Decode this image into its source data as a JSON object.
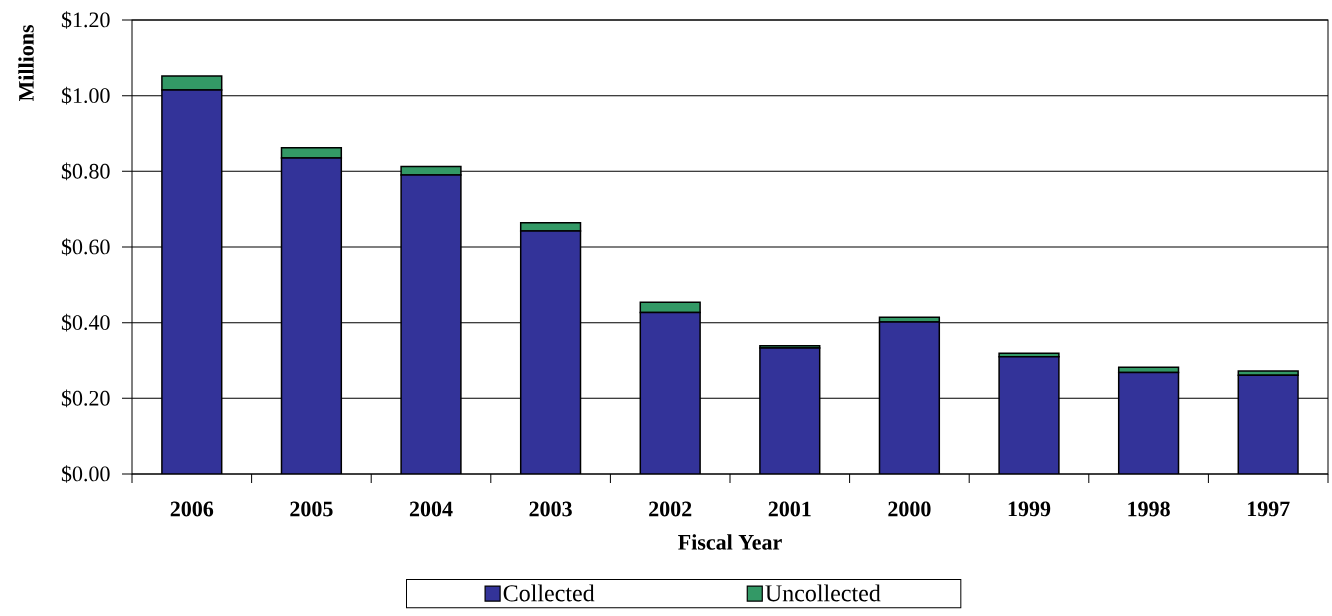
{
  "chart_data": {
    "type": "bar",
    "stacked": true,
    "xlabel": "Fiscal Year",
    "ylabel": "Millions",
    "categories": [
      "2006",
      "2005",
      "2004",
      "2003",
      "2002",
      "2001",
      "2000",
      "1999",
      "1998",
      "1997"
    ],
    "series": [
      {
        "name": "Collected",
        "color": "#333399",
        "values": [
          1.015,
          0.835,
          0.79,
          0.642,
          0.427,
          0.333,
          0.402,
          0.31,
          0.268,
          0.261
        ]
      },
      {
        "name": "Uncollected",
        "color": "#339966",
        "values": [
          0.037,
          0.027,
          0.023,
          0.022,
          0.027,
          0.006,
          0.012,
          0.009,
          0.014,
          0.011
        ]
      }
    ],
    "ylim": [
      0,
      1.2
    ],
    "yticks": [
      {
        "value": 0,
        "label": "$0.00"
      },
      {
        "value": 0.2,
        "label": "$0.20"
      },
      {
        "value": 0.4,
        "label": "$0.40"
      },
      {
        "value": 0.6,
        "label": "$0.60"
      },
      {
        "value": 0.8,
        "label": "$0.80"
      },
      {
        "value": 1.0,
        "label": "$1.00"
      },
      {
        "value": 1.2,
        "label": "$1.20"
      }
    ],
    "grid": "y",
    "legend": "bottom"
  }
}
